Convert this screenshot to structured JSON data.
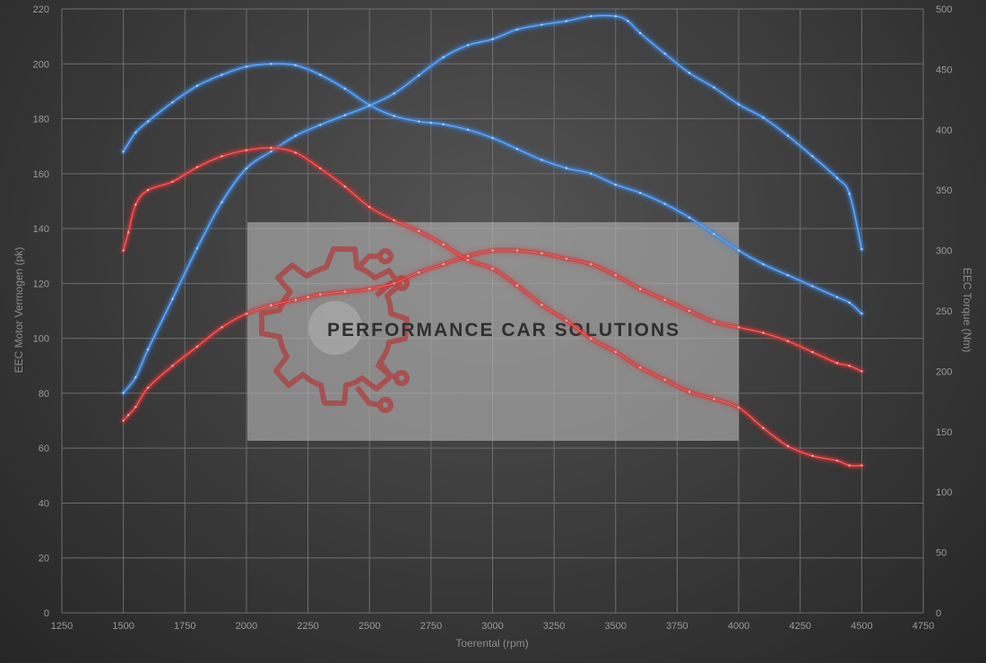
{
  "chart_data": {
    "type": "line",
    "x_label": "Toerental (rpm)",
    "y_left_label": "EEC Motor Vermogen (pk)",
    "y_right_label": "EEC Torque (Nm)",
    "xlim": [
      1250,
      4750
    ],
    "ylim_left": [
      0,
      220
    ],
    "ylim_right": [
      0,
      500
    ],
    "x_ticks": [
      "1250",
      "1500",
      "1750",
      "2000",
      "2250",
      "2500",
      "2750",
      "3000",
      "3250",
      "3500",
      "3750",
      "4000",
      "4250",
      "4500",
      "4750"
    ],
    "y_left_ticks": [
      "0",
      "20",
      "40",
      "60",
      "80",
      "100",
      "120",
      "140",
      "160",
      "180",
      "200",
      "220"
    ],
    "y_right_ticks": [
      "0",
      "50",
      "100",
      "150",
      "200",
      "250",
      "300",
      "350",
      "400",
      "450",
      "500"
    ],
    "grid": true,
    "series": [
      {
        "color": "#3d86e0",
        "axis": "left",
        "x": [
          1500,
          1550,
          1600,
          1700,
          1800,
          1900,
          2000,
          2100,
          2200,
          2300,
          2400,
          2500,
          2600,
          2700,
          2750,
          2800,
          2900,
          3000,
          3100,
          3200,
          3300,
          3400,
          3500,
          3600,
          3700,
          3800,
          3900,
          4000,
          4100,
          4200,
          4300,
          4400,
          4450,
          4500
        ],
        "y": [
          168,
          175,
          179,
          186,
          192,
          196,
          199,
          200,
          199.5,
          196,
          191,
          185,
          181,
          179,
          178.5,
          178,
          176,
          173,
          169,
          165,
          162,
          160,
          156,
          153,
          149,
          144,
          138,
          132,
          127,
          123,
          119,
          115,
          113,
          109
        ]
      },
      {
        "color": "#d63232",
        "axis": "left",
        "x": [
          1500,
          1520,
          1550,
          1600,
          1700,
          1800,
          1900,
          2000,
          2100,
          2200,
          2250,
          2300,
          2400,
          2500,
          2600,
          2700,
          2800,
          2900,
          3000,
          3100,
          3200,
          3300,
          3400,
          3500,
          3600,
          3700,
          3800,
          3900,
          4000,
          4100,
          4200,
          4300,
          4400,
          4450,
          4500
        ],
        "y": [
          70,
          72,
          75,
          82,
          90,
          97,
          104,
          109,
          112,
          114,
          115,
          116,
          117,
          118,
          120,
          124,
          127,
          130,
          132,
          132,
          131,
          129,
          127,
          123,
          118,
          114,
          110,
          106,
          104,
          102,
          99,
          95,
          91,
          90,
          88
        ]
      },
      {
        "color": "#3d86e0",
        "axis": "right",
        "x": [
          1500,
          1550,
          1600,
          1700,
          1800,
          1900,
          2000,
          2100,
          2200,
          2300,
          2400,
          2500,
          2600,
          2700,
          2800,
          2900,
          3000,
          3100,
          3200,
          3300,
          3400,
          3500,
          3550,
          3600,
          3700,
          3800,
          3900,
          4000,
          4100,
          4200,
          4300,
          4400,
          4450,
          4500
        ],
        "y": [
          182,
          195,
          218,
          260,
          302,
          340,
          368,
          382,
          395,
          404,
          412,
          420,
          430,
          445,
          460,
          470,
          475,
          483,
          487,
          490,
          494,
          494,
          490,
          480,
          463,
          447,
          435,
          421,
          410,
          395,
          378,
          360,
          347,
          301
        ]
      },
      {
        "color": "#d63232",
        "axis": "right",
        "x": [
          1500,
          1520,
          1550,
          1600,
          1700,
          1800,
          1900,
          2000,
          2100,
          2200,
          2300,
          2400,
          2500,
          2600,
          2700,
          2800,
          2900,
          3000,
          3100,
          3200,
          3300,
          3400,
          3500,
          3600,
          3700,
          3800,
          3900,
          4000,
          4100,
          4200,
          4300,
          4400,
          4450,
          4500
        ],
        "y": [
          300,
          315,
          338,
          350,
          357,
          369,
          378,
          383,
          385,
          381,
          368,
          353,
          336,
          325,
          316,
          305,
          292,
          285,
          271,
          255,
          242,
          227,
          216,
          203,
          193,
          183,
          177,
          170,
          153,
          138,
          130,
          126,
          122,
          122
        ]
      }
    ]
  },
  "watermark": {
    "brand_name": "PERFORMANCE CAR SOLUTIONS",
    "logo_icon": "gear-circuit-icon",
    "logo_color": "#b23c3c"
  }
}
